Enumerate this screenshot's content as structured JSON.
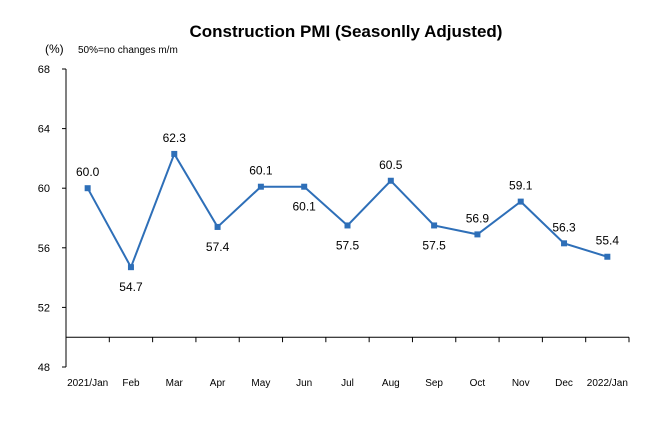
{
  "chart_data": {
    "type": "line",
    "title": "Construction PMI (Seasonlly Adjusted)",
    "unit_label": "(%)",
    "note": "50%=no changes  m/m",
    "categories": [
      "2021/Jan",
      "Feb",
      "Mar",
      "Apr",
      "May",
      "Jun",
      "Jul",
      "Aug",
      "Sep",
      "Oct",
      "Nov",
      "Dec",
      "2022/Jan"
    ],
    "values": [
      60.0,
      54.7,
      62.3,
      57.4,
      60.1,
      60.1,
      57.5,
      60.5,
      57.5,
      56.9,
      59.1,
      56.3,
      55.4
    ],
    "value_labels": [
      "60.0",
      "54.7",
      "62.3",
      "57.4",
      "60.1",
      "60.1",
      "57.5",
      "60.5",
      "57.5",
      "56.9",
      "59.1",
      "56.3",
      "55.4"
    ],
    "label_position": [
      "above",
      "below",
      "above",
      "below",
      "above",
      "below",
      "below",
      "above",
      "below",
      "above",
      "above",
      "above",
      "above"
    ],
    "ylim": [
      48,
      68
    ],
    "yticks": [
      "48",
      "52",
      "56",
      "60",
      "64",
      "68"
    ],
    "reference_line": 50,
    "grid": false,
    "legend": "none",
    "line_color": "#2e6fb8"
  }
}
